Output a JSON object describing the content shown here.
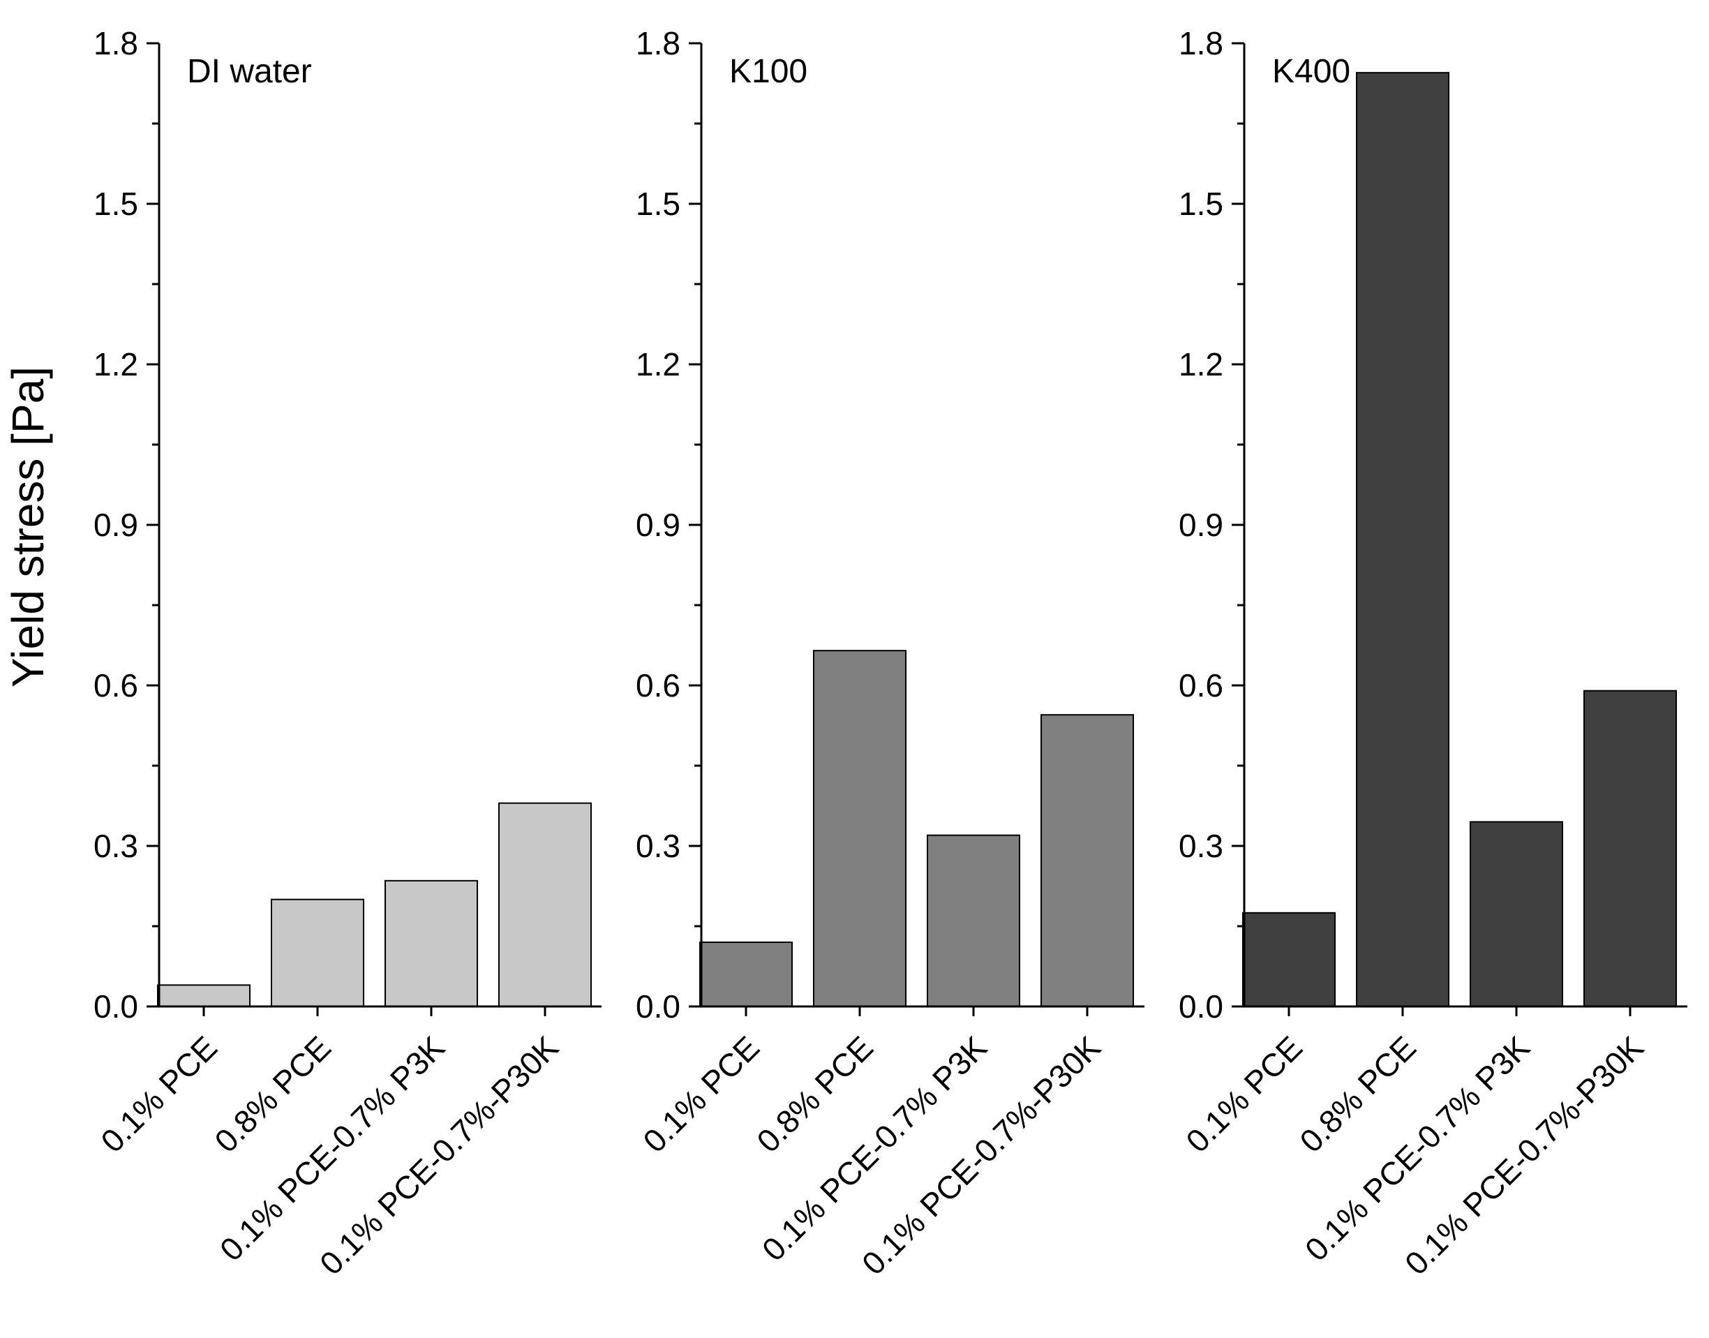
{
  "figure": {
    "ylabel": "Yield stress [Pa]"
  },
  "chart_data": [
    {
      "type": "bar",
      "title": "DI water",
      "ylabel": "Yield stress [Pa]",
      "xlabel": "",
      "ylim": [
        0,
        1.8
      ],
      "yticks": [
        "0.0",
        "0.3",
        "0.6",
        "0.9",
        "1.2",
        "1.5",
        "1.8"
      ],
      "categories": [
        "0.1% PCE",
        "0.8% PCE",
        "0.1% PCE-0.7% P3K",
        "0.1% PCE-0.7%-P30K"
      ],
      "values": [
        0.04,
        0.2,
        0.235,
        0.38
      ],
      "bar_color": "#c8c8c8"
    },
    {
      "type": "bar",
      "title": "K100",
      "ylabel": "",
      "xlabel": "",
      "ylim": [
        0,
        1.8
      ],
      "yticks": [
        "0.0",
        "0.3",
        "0.6",
        "0.9",
        "1.2",
        "1.5",
        "1.8"
      ],
      "categories": [
        "0.1% PCE",
        "0.8% PCE",
        "0.1% PCE-0.7% P3K",
        "0.1% PCE-0.7%-P30K"
      ],
      "values": [
        0.12,
        0.665,
        0.32,
        0.545
      ],
      "bar_color": "#808080"
    },
    {
      "type": "bar",
      "title": "K400",
      "ylabel": "",
      "xlabel": "",
      "ylim": [
        0,
        1.8
      ],
      "yticks": [
        "0.0",
        "0.3",
        "0.6",
        "0.9",
        "1.2",
        "1.5",
        "1.8"
      ],
      "categories": [
        "0.1% PCE",
        "0.8% PCE",
        "0.1% PCE-0.7% P3K",
        "0.1% PCE-0.7%-P30K"
      ],
      "values": [
        0.175,
        1.745,
        0.345,
        0.59
      ],
      "bar_color": "#404040"
    }
  ]
}
